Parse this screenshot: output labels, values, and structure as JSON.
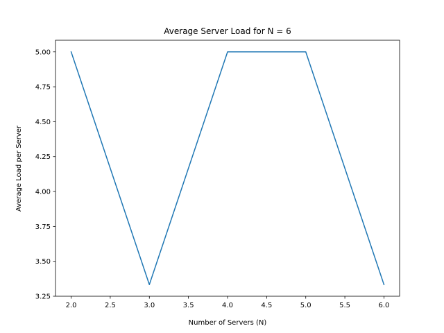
{
  "chart_data": {
    "type": "line",
    "title": "Average Server Load for N = 6",
    "xlabel": "Number of Servers (N)",
    "ylabel": "Average Load per Server",
    "x": [
      2,
      3,
      4,
      5,
      6
    ],
    "series": [
      {
        "values": [
          5.0,
          3.3333,
          5.0,
          5.0,
          3.3333
        ],
        "color": "#1f77b4"
      }
    ],
    "xlim": [
      1.8,
      6.2
    ],
    "ylim": [
      3.25,
      5.0833
    ],
    "xticks": [
      "2.0",
      "2.5",
      "3.0",
      "3.5",
      "4.0",
      "4.5",
      "5.0",
      "5.5",
      "6.0"
    ],
    "yticks": [
      "3.25",
      "3.50",
      "3.75",
      "4.00",
      "4.25",
      "4.50",
      "4.75",
      "5.00"
    ],
    "grid": false,
    "legend": "none"
  }
}
